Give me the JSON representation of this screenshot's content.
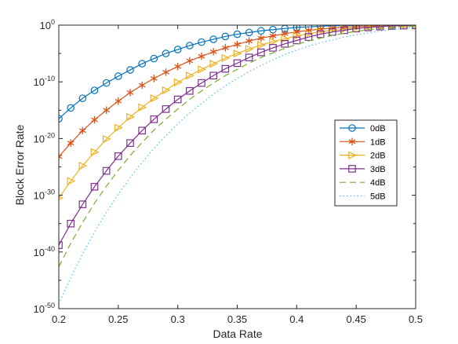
{
  "chart_data": {
    "type": "line",
    "xlabel": "Data Rate",
    "ylabel": "Block Error Rate",
    "xlim": [
      0.2,
      0.5
    ],
    "ylim": [
      1e-50,
      1
    ],
    "yscale": "log",
    "x_ticks": [
      "0.2",
      "0.25",
      "0.3",
      "0.35",
      "0.4",
      "0.45",
      "0.5"
    ],
    "y_ticks": [
      {
        "base": "10",
        "exp": "0"
      },
      {
        "base": "10",
        "exp": "-10"
      },
      {
        "base": "10",
        "exp": "-20"
      },
      {
        "base": "10",
        "exp": "-30"
      },
      {
        "base": "10",
        "exp": "-40"
      },
      {
        "base": "10",
        "exp": "-50"
      }
    ],
    "legend_position": "right",
    "grid": false,
    "series": [
      {
        "name": "0dB",
        "color": "#0072BD",
        "marker": "circle",
        "dash": "solid",
        "x": [
          0.2,
          0.21,
          0.22,
          0.23,
          0.24,
          0.25,
          0.26,
          0.27,
          0.28,
          0.29,
          0.3,
          0.31,
          0.32,
          0.33,
          0.34,
          0.35,
          0.36,
          0.37,
          0.38,
          0.39,
          0.4,
          0.41,
          0.42,
          0.43,
          0.44,
          0.45,
          0.46,
          0.47,
          0.48
        ],
        "log10_y": [
          -16.5,
          -14.6,
          -12.9,
          -11.5,
          -10.2,
          -9.0,
          -7.9,
          -6.8,
          -5.9,
          -5.0,
          -4.3,
          -3.6,
          -3.0,
          -2.5,
          -2.0,
          -1.6,
          -1.3,
          -1.0,
          -0.8,
          -0.6,
          -0.4,
          -0.3,
          -0.2,
          -0.12,
          -0.07,
          -0.03,
          0.0,
          0.0,
          0.0
        ]
      },
      {
        "name": "1dB",
        "color": "#D95319",
        "marker": "star",
        "dash": "solid",
        "x": [
          0.2,
          0.21,
          0.22,
          0.23,
          0.24,
          0.25,
          0.26,
          0.27,
          0.28,
          0.29,
          0.3,
          0.31,
          0.32,
          0.33,
          0.34,
          0.35,
          0.36,
          0.37,
          0.38,
          0.39,
          0.4,
          0.41,
          0.42,
          0.43,
          0.44,
          0.45,
          0.46,
          0.47,
          0.48,
          0.49,
          0.5
        ],
        "log10_y": [
          -23.2,
          -20.8,
          -18.6,
          -16.7,
          -15.0,
          -13.4,
          -11.9,
          -10.6,
          -9.4,
          -8.3,
          -7.3,
          -6.3,
          -5.5,
          -4.7,
          -4.0,
          -3.4,
          -2.8,
          -2.3,
          -1.9,
          -1.5,
          -1.2,
          -0.9,
          -0.7,
          -0.5,
          -0.35,
          -0.25,
          -0.15,
          -0.1,
          -0.05,
          -0.02,
          -0.01
        ]
      },
      {
        "name": "2dB",
        "color": "#EDB120",
        "marker": "triangle-right",
        "dash": "solid",
        "x": [
          0.2,
          0.21,
          0.22,
          0.23,
          0.24,
          0.25,
          0.26,
          0.27,
          0.28,
          0.29,
          0.3,
          0.31,
          0.32,
          0.33,
          0.34,
          0.35,
          0.36,
          0.37,
          0.38,
          0.39,
          0.4,
          0.41,
          0.42,
          0.43,
          0.44,
          0.45,
          0.46,
          0.47,
          0.48,
          0.49,
          0.5
        ],
        "log10_y": [
          -30.5,
          -27.5,
          -24.8,
          -22.4,
          -20.1,
          -18.1,
          -16.2,
          -14.5,
          -12.9,
          -11.5,
          -10.1,
          -8.9,
          -7.8,
          -6.8,
          -5.8,
          -5.0,
          -4.2,
          -3.5,
          -2.9,
          -2.4,
          -1.9,
          -1.5,
          -1.2,
          -0.9,
          -0.7,
          -0.5,
          -0.35,
          -0.25,
          -0.15,
          -0.1,
          -0.06
        ]
      },
      {
        "name": "3dB",
        "color": "#7E2F8E",
        "marker": "square",
        "dash": "solid",
        "x": [
          0.2,
          0.21,
          0.22,
          0.23,
          0.24,
          0.25,
          0.26,
          0.27,
          0.28,
          0.29,
          0.3,
          0.31,
          0.32,
          0.33,
          0.34,
          0.35,
          0.36,
          0.37,
          0.38,
          0.39,
          0.4,
          0.41,
          0.42,
          0.43,
          0.44,
          0.45,
          0.46,
          0.47,
          0.48,
          0.49,
          0.5
        ],
        "log10_y": [
          -38.8,
          -35.0,
          -31.6,
          -28.5,
          -25.7,
          -23.1,
          -20.8,
          -18.6,
          -16.6,
          -14.8,
          -13.1,
          -11.6,
          -10.2,
          -8.9,
          -7.7,
          -6.7,
          -5.7,
          -4.8,
          -4.0,
          -3.3,
          -2.7,
          -2.1,
          -1.6,
          -1.2,
          -0.9,
          -0.6,
          -0.4,
          -0.25,
          -0.15,
          -0.08,
          -0.04
        ]
      },
      {
        "name": "4dB",
        "color": "#77AC30",
        "marker": "none",
        "dash": "8,5",
        "x": [
          0.2,
          0.21,
          0.22,
          0.23,
          0.24,
          0.25,
          0.26,
          0.27,
          0.28,
          0.29,
          0.3,
          0.31,
          0.32,
          0.33,
          0.34,
          0.35,
          0.36,
          0.37,
          0.38,
          0.39,
          0.4,
          0.41,
          0.42,
          0.43,
          0.44,
          0.45,
          0.46,
          0.47,
          0.48,
          0.49,
          0.5
        ],
        "log10_y": [
          -42.6,
          -38.5,
          -34.8,
          -31.4,
          -28.4,
          -25.6,
          -23.0,
          -20.7,
          -18.5,
          -16.6,
          -14.8,
          -13.1,
          -11.6,
          -10.2,
          -8.9,
          -7.8,
          -6.7,
          -5.7,
          -4.9,
          -4.1,
          -3.4,
          -2.8,
          -2.3,
          -1.8,
          -1.4,
          -1.1,
          -0.8,
          -0.6,
          -0.4,
          -0.25,
          -0.15
        ]
      },
      {
        "name": "5dB",
        "color": "#4DBEEE",
        "marker": "none",
        "dash": "1.5,3",
        "x": [
          0.2,
          0.21,
          0.22,
          0.23,
          0.24,
          0.25,
          0.26,
          0.27,
          0.28,
          0.29,
          0.3,
          0.31,
          0.32,
          0.33,
          0.34,
          0.35,
          0.36,
          0.37,
          0.38,
          0.39,
          0.4,
          0.41,
          0.42,
          0.43,
          0.44,
          0.45,
          0.46,
          0.47,
          0.48,
          0.49,
          0.5
        ],
        "log10_y": [
          -49.2,
          -44.5,
          -40.3,
          -36.5,
          -33.0,
          -29.8,
          -26.9,
          -24.2,
          -21.7,
          -19.5,
          -17.4,
          -15.5,
          -13.8,
          -12.2,
          -10.7,
          -9.4,
          -8.2,
          -7.1,
          -6.1,
          -5.2,
          -4.4,
          -3.7,
          -3.1,
          -2.6,
          -2.1,
          -1.7,
          -1.35,
          -1.05,
          -0.8,
          -0.55,
          -0.4
        ]
      }
    ]
  }
}
